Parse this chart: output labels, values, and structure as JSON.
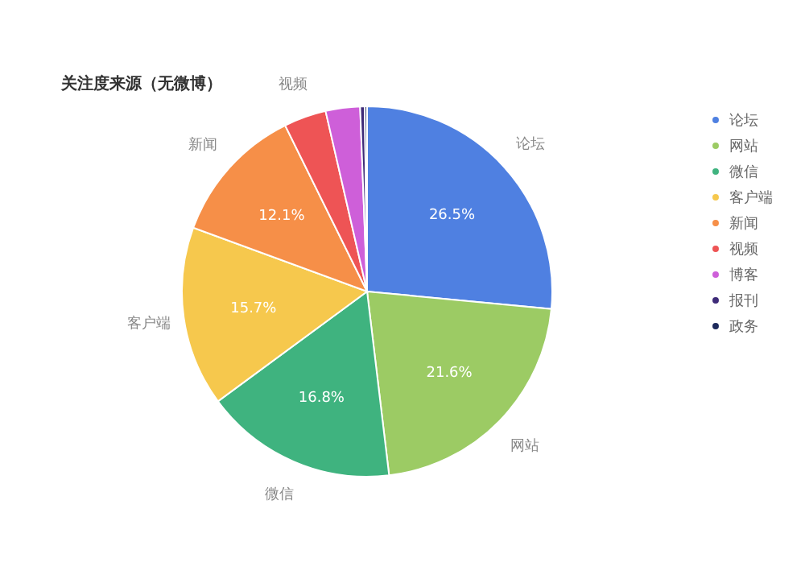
{
  "chart_data": {
    "type": "pie",
    "title": "关注度来源（无微博）",
    "categories": [
      "论坛",
      "网站",
      "微信",
      "客户端",
      "新闻",
      "视频",
      "博客",
      "报刊",
      "政务"
    ],
    "values": [
      26.5,
      21.6,
      16.8,
      15.7,
      12.1,
      3.7,
      3.0,
      0.4,
      0.2
    ],
    "colors": [
      "#4f80e1",
      "#9ccb64",
      "#3fb37f",
      "#f6c84d",
      "#f68f48",
      "#ee5455",
      "#ce5fd9",
      "#3e2b78",
      "#1e2a5c"
    ],
    "value_labels": [
      "26.5%",
      "21.6%",
      "16.8%",
      "15.7%",
      "12.1%",
      null,
      null,
      null,
      null
    ],
    "legend": "right"
  }
}
